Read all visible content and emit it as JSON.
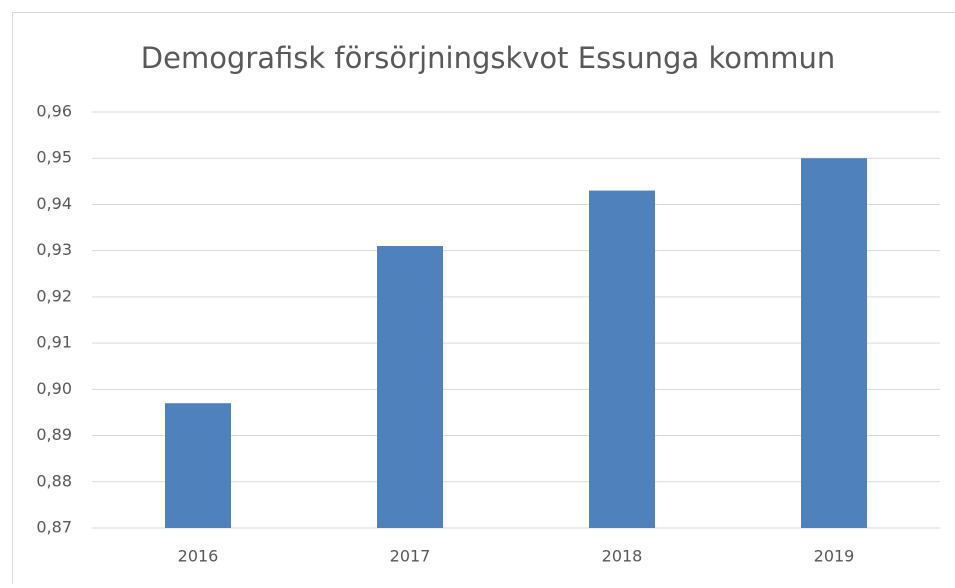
{
  "chart_data": {
    "type": "bar",
    "title": "Demografisk försörjningskvot Essunga kommun",
    "categories": [
      "2016",
      "2017",
      "2018",
      "2019"
    ],
    "values": [
      0.897,
      0.931,
      0.943,
      0.95
    ],
    "color": "#4f81bd",
    "ylim": [
      0.87,
      0.96
    ],
    "yticks": [
      {
        "value": 0.87,
        "label": "0,87"
      },
      {
        "value": 0.88,
        "label": "0,88"
      },
      {
        "value": 0.89,
        "label": "0,89"
      },
      {
        "value": 0.9,
        "label": "0,90"
      },
      {
        "value": 0.91,
        "label": "0,91"
      },
      {
        "value": 0.92,
        "label": "0,92"
      },
      {
        "value": 0.93,
        "label": "0,93"
      },
      {
        "value": 0.94,
        "label": "0,94"
      },
      {
        "value": 0.95,
        "label": "0,95"
      },
      {
        "value": 0.96,
        "label": "0,96"
      }
    ],
    "grid": true
  }
}
